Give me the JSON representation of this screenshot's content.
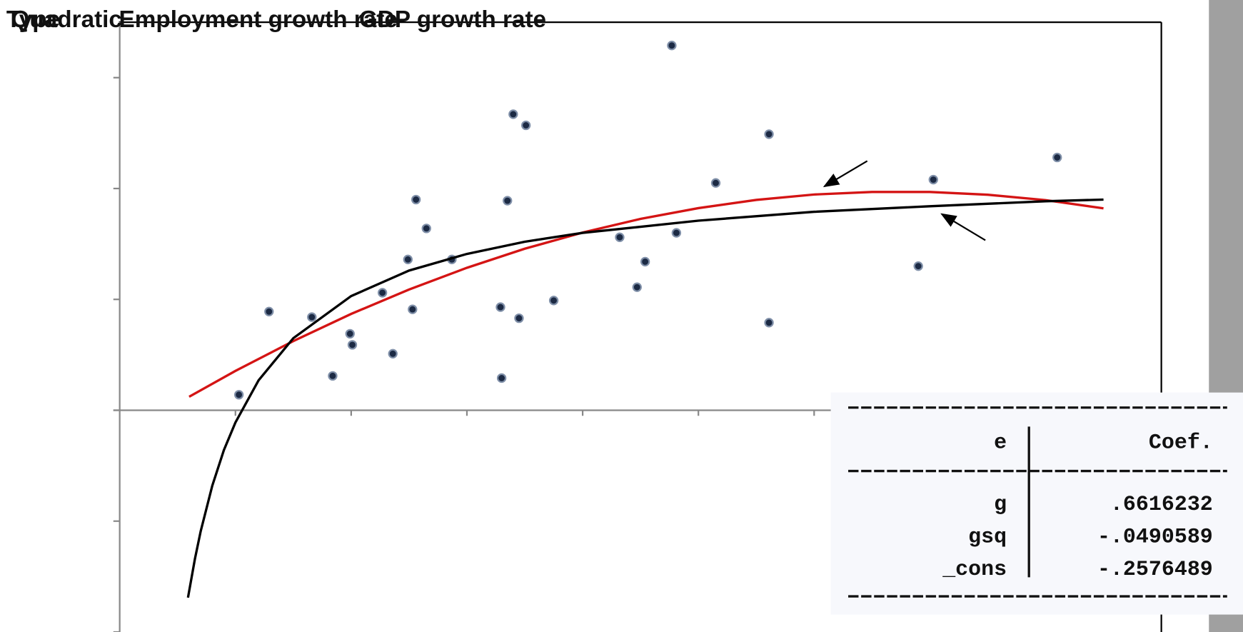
{
  "chart_data": {
    "type": "scatter",
    "title_parts": [
      "Type",
      "Quadratic",
      "Employment growth rate",
      "GDP growth rate"
    ],
    "xlim": [
      0,
      9
    ],
    "ylim": [
      -2,
      3.5
    ],
    "xticks": [
      1,
      2,
      3,
      4,
      5,
      6,
      7,
      8
    ],
    "yticks": [
      -2,
      -1,
      0,
      1,
      2,
      3
    ],
    "series": [
      {
        "type": "scatter",
        "color": "#1c2a44",
        "x": [
          4.77,
          3.4,
          3.51,
          5.61,
          8.1,
          7.03,
          5.15,
          2.56,
          3.35,
          2.65,
          4.81,
          4.32,
          2.49,
          2.87,
          4.54,
          6.9,
          4.47,
          2.27,
          3.75,
          1.29,
          2.53,
          3.29,
          1.66,
          3.45,
          5.61,
          1.99,
          2.01,
          2.36,
          1.84,
          3.3,
          1.03
        ],
        "values": [
          3.29,
          2.67,
          2.57,
          2.49,
          2.28,
          2.08,
          2.05,
          1.9,
          1.89,
          1.64,
          1.6,
          1.56,
          1.36,
          1.36,
          1.34,
          1.3,
          1.11,
          1.06,
          0.99,
          0.89,
          0.91,
          0.93,
          0.84,
          0.83,
          0.79,
          0.69,
          0.59,
          0.51,
          0.31,
          0.29,
          0.14
        ]
      },
      {
        "type": "line",
        "color": "#d41414",
        "x": [
          0.6,
          1,
          1.5,
          2,
          2.5,
          3,
          3.5,
          4,
          4.5,
          5,
          5.5,
          6,
          6.5,
          7,
          7.5,
          8,
          8.5
        ],
        "values": [
          0.122,
          0.355,
          0.624,
          0.869,
          1.089,
          1.285,
          1.457,
          1.603,
          1.726,
          1.823,
          1.897,
          1.946,
          1.969,
          1.969,
          1.944,
          1.895,
          1.821
        ]
      },
      {
        "type": "line",
        "color": "#000000",
        "x": [
          0.59,
          0.65,
          0.7,
          0.8,
          0.9,
          1,
          1.2,
          1.5,
          2,
          2.5,
          3,
          3.5,
          4,
          5,
          6,
          7,
          8,
          8.5
        ],
        "values": [
          -1.69,
          -1.34,
          -1.09,
          -0.68,
          -0.36,
          -0.11,
          0.27,
          0.65,
          1.03,
          1.26,
          1.41,
          1.52,
          1.6,
          1.71,
          1.79,
          1.84,
          1.885,
          1.9
        ]
      }
    ]
  },
  "table": {
    "header": [
      "e",
      "Coef."
    ],
    "rows": [
      [
        "g",
        ".6616232"
      ],
      [
        "gsq",
        "-.0490589"
      ],
      [
        "_cons",
        "-.2576489"
      ]
    ]
  }
}
